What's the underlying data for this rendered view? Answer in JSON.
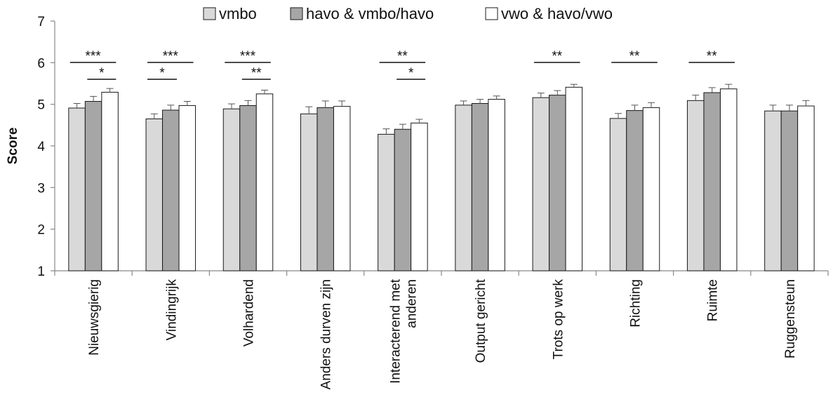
{
  "chart_data": {
    "type": "bar",
    "ylabel": "Score",
    "xlabel": "",
    "ylim": [
      1,
      7
    ],
    "yticks": [
      "1",
      "2",
      "3",
      "4",
      "5",
      "6",
      "7"
    ],
    "legend_position": "top-center",
    "error_bars": true,
    "categories": [
      [
        "Nieuwsgierig"
      ],
      [
        "Vindingrijk"
      ],
      [
        "Volhardend"
      ],
      [
        "Anders durven zijn"
      ],
      [
        "Interacterend met",
        "anderen"
      ],
      [
        "Output gericht"
      ],
      [
        "Trots op werk"
      ],
      [
        "Richting"
      ],
      [
        "Ruimte"
      ],
      [
        "Ruggensteun"
      ]
    ],
    "series": [
      {
        "name": "vmbo",
        "color": "#d9d9d9",
        "values": [
          4.91,
          4.65,
          4.89,
          4.77,
          4.28,
          4.98,
          5.16,
          4.66,
          5.09,
          4.84
        ],
        "errors": [
          0.11,
          0.12,
          0.12,
          0.17,
          0.13,
          0.1,
          0.11,
          0.12,
          0.13,
          0.14
        ]
      },
      {
        "name": "havo & vmbo/havo",
        "color": "#a6a6a6",
        "values": [
          5.07,
          4.86,
          4.97,
          4.92,
          4.4,
          5.02,
          5.22,
          4.85,
          5.28,
          4.84
        ],
        "errors": [
          0.12,
          0.12,
          0.12,
          0.16,
          0.12,
          0.1,
          0.11,
          0.13,
          0.12,
          0.14
        ]
      },
      {
        "name": "vwo & havo/vwo",
        "color": "#ffffff",
        "values": [
          5.29,
          4.97,
          5.25,
          4.95,
          4.55,
          5.12,
          5.41,
          4.92,
          5.37,
          4.96
        ],
        "errors": [
          0.09,
          0.1,
          0.09,
          0.13,
          0.09,
          0.08,
          0.07,
          0.12,
          0.11,
          0.13
        ]
      }
    ],
    "significance": [
      {
        "category": 0,
        "from": 0,
        "to": 2,
        "label": "***"
      },
      {
        "category": 0,
        "from": 1,
        "to": 2,
        "label": "*"
      },
      {
        "category": 1,
        "from": 0,
        "to": 2,
        "label": "***"
      },
      {
        "category": 1,
        "from": 0,
        "to": 1,
        "label": "*"
      },
      {
        "category": 2,
        "from": 0,
        "to": 2,
        "label": "***"
      },
      {
        "category": 2,
        "from": 1,
        "to": 2,
        "label": "**"
      },
      {
        "category": 4,
        "from": 0,
        "to": 2,
        "label": "**"
      },
      {
        "category": 4,
        "from": 1,
        "to": 2,
        "label": "*"
      },
      {
        "category": 6,
        "from": 0,
        "to": 2,
        "label": "**"
      },
      {
        "category": 7,
        "from": 0,
        "to": 2,
        "label": "**"
      },
      {
        "category": 8,
        "from": 0,
        "to": 2,
        "label": "**"
      }
    ]
  }
}
